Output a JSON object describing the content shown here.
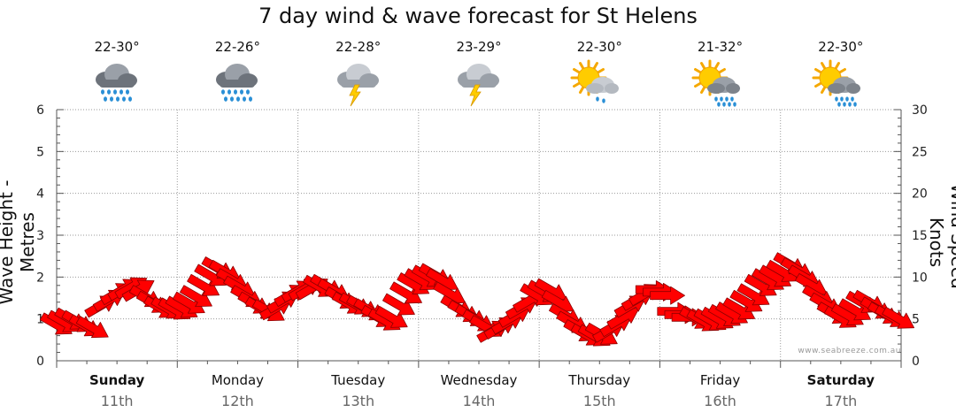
{
  "title": "7 day wind & wave forecast for St Helens",
  "credit": "www.seabreeze.com.au",
  "colors": {
    "arrow": "#ff0000",
    "arrow_stroke": "#8b0000",
    "grid": "#9a9a9a",
    "axis": "#555555"
  },
  "days": [
    {
      "name": "Sunday",
      "date": "11th",
      "temp": "22-30°",
      "icon": "rain-cloud-icon",
      "bold": true
    },
    {
      "name": "Monday",
      "date": "12th",
      "temp": "22-26°",
      "icon": "rain-cloud-icon",
      "bold": false
    },
    {
      "name": "Tuesday",
      "date": "13th",
      "temp": "22-28°",
      "icon": "thunderstorm-icon",
      "bold": false
    },
    {
      "name": "Wednesday",
      "date": "14th",
      "temp": "23-29°",
      "icon": "thunderstorm-icon",
      "bold": false
    },
    {
      "name": "Thursday",
      "date": "15th",
      "temp": "22-30°",
      "icon": "sun-cloud-showers-icon",
      "bold": false
    },
    {
      "name": "Friday",
      "date": "16th",
      "temp": "21-32°",
      "icon": "sun-rain-cloud-icon",
      "bold": false
    },
    {
      "name": "Saturday",
      "date": "17th",
      "temp": "22-30°",
      "icon": "sun-rain-cloud-icon",
      "bold": true
    }
  ],
  "chart_data": {
    "type": "line",
    "x_unit": "days",
    "x_range": [
      0,
      7
    ],
    "y_left": {
      "label": "Wave Height - Metres",
      "range": [
        0,
        6
      ],
      "ticks": [
        0,
        1,
        2,
        3,
        4,
        5,
        6
      ]
    },
    "y_right": {
      "label": "Wind Speed - Knots",
      "range": [
        0,
        30
      ],
      "ticks": [
        0,
        5,
        10,
        15,
        20,
        25,
        30
      ]
    },
    "grid": true,
    "series": [
      {
        "name": "Wind Speed",
        "marker": "direction-arrow",
        "x": [
          0.0,
          0.06,
          0.12,
          0.18,
          0.24,
          0.3,
          0.37,
          0.44,
          0.5,
          0.56,
          0.62,
          0.68,
          0.74,
          0.8,
          0.86,
          0.92,
          0.98,
          1.04,
          1.1,
          1.16,
          1.22,
          1.28,
          1.34,
          1.4,
          1.46,
          1.52,
          1.58,
          1.64,
          1.7,
          1.76,
          1.82,
          1.88,
          1.94,
          2.0,
          2.06,
          2.12,
          2.18,
          2.24,
          2.3,
          2.36,
          2.42,
          2.48,
          2.54,
          2.6,
          2.66,
          2.72,
          2.78,
          2.84,
          2.9,
          2.96,
          3.02,
          3.08,
          3.14,
          3.2,
          3.26,
          3.32,
          3.38,
          3.44,
          3.5,
          3.56,
          3.62,
          3.68,
          3.74,
          3.8,
          3.86,
          3.92,
          3.98,
          4.04,
          4.1,
          4.16,
          4.22,
          4.28,
          4.34,
          4.4,
          4.46,
          4.52,
          4.58,
          4.64,
          4.7,
          4.76,
          4.82,
          4.88,
          4.94,
          5.0,
          5.06,
          5.12,
          5.18,
          5.24,
          5.3,
          5.36,
          5.42,
          5.48,
          5.54,
          5.6,
          5.66,
          5.72,
          5.78,
          5.84,
          5.9,
          5.96,
          6.02,
          6.08,
          6.14,
          6.2,
          6.26,
          6.32,
          6.38,
          6.44,
          6.5,
          6.56,
          6.62,
          6.68,
          6.74,
          6.8,
          6.86,
          6.92,
          6.98
        ],
        "values": [
          4.3,
          4.6,
          4.9,
          4.6,
          4.1,
          3.9,
          6.6,
          7.3,
          8.1,
          8.6,
          8.8,
          8.5,
          7.6,
          6.9,
          6.3,
          6.2,
          6.1,
          6.3,
          6.8,
          7.6,
          8.9,
          10.1,
          11.0,
          10.6,
          9.6,
          8.7,
          7.6,
          6.8,
          6.2,
          5.9,
          6.3,
          7.1,
          7.9,
          8.4,
          8.6,
          8.7,
          8.8,
          8.9,
          8.4,
          7.4,
          6.8,
          6.7,
          6.4,
          6.0,
          5.2,
          4.8,
          5.1,
          6.6,
          8.0,
          9.1,
          9.6,
          10.0,
          10.2,
          9.6,
          8.0,
          6.4,
          5.8,
          5.3,
          4.7,
          4.0,
          3.6,
          4.0,
          4.6,
          5.4,
          6.4,
          7.2,
          7.8,
          8.2,
          8.4,
          7.0,
          5.4,
          4.5,
          3.5,
          3.0,
          2.9,
          3.1,
          3.6,
          4.3,
          5.2,
          6.6,
          7.4,
          8.0,
          8.5,
          8.2,
          7.8,
          5.9,
          5.5,
          5.2,
          5.0,
          4.7,
          4.8,
          5.0,
          5.3,
          5.6,
          6.1,
          7.0,
          7.8,
          8.9,
          9.6,
          10.0,
          10.6,
          11.5,
          10.9,
          10.0,
          9.0,
          7.6,
          6.7,
          5.6,
          5.1,
          5.4,
          6.0,
          6.9,
          7.0,
          6.2,
          5.6,
          5.2,
          5.0
        ],
        "directions_deg": [
          300,
          300,
          300,
          300,
          300,
          300,
          240,
          240,
          240,
          240,
          240,
          240,
          300,
          300,
          300,
          300,
          300,
          300,
          300,
          300,
          300,
          300,
          300,
          300,
          300,
          300,
          300,
          300,
          300,
          300,
          240,
          240,
          240,
          240,
          240,
          240,
          300,
          300,
          300,
          300,
          300,
          300,
          300,
          300,
          300,
          300,
          300,
          300,
          300,
          300,
          300,
          300,
          300,
          300,
          300,
          300,
          300,
          300,
          300,
          300,
          240,
          240,
          240,
          240,
          240,
          240,
          300,
          300,
          300,
          300,
          300,
          300,
          300,
          300,
          300,
          300,
          240,
          240,
          240,
          240,
          240,
          240,
          270,
          270,
          270,
          270,
          270,
          270,
          300,
          300,
          300,
          300,
          300,
          300,
          300,
          300,
          300,
          300,
          300,
          300,
          300,
          300,
          300,
          300,
          300,
          300,
          300,
          300,
          300,
          300,
          300,
          300,
          300,
          300,
          300,
          300,
          300
        ]
      }
    ]
  }
}
